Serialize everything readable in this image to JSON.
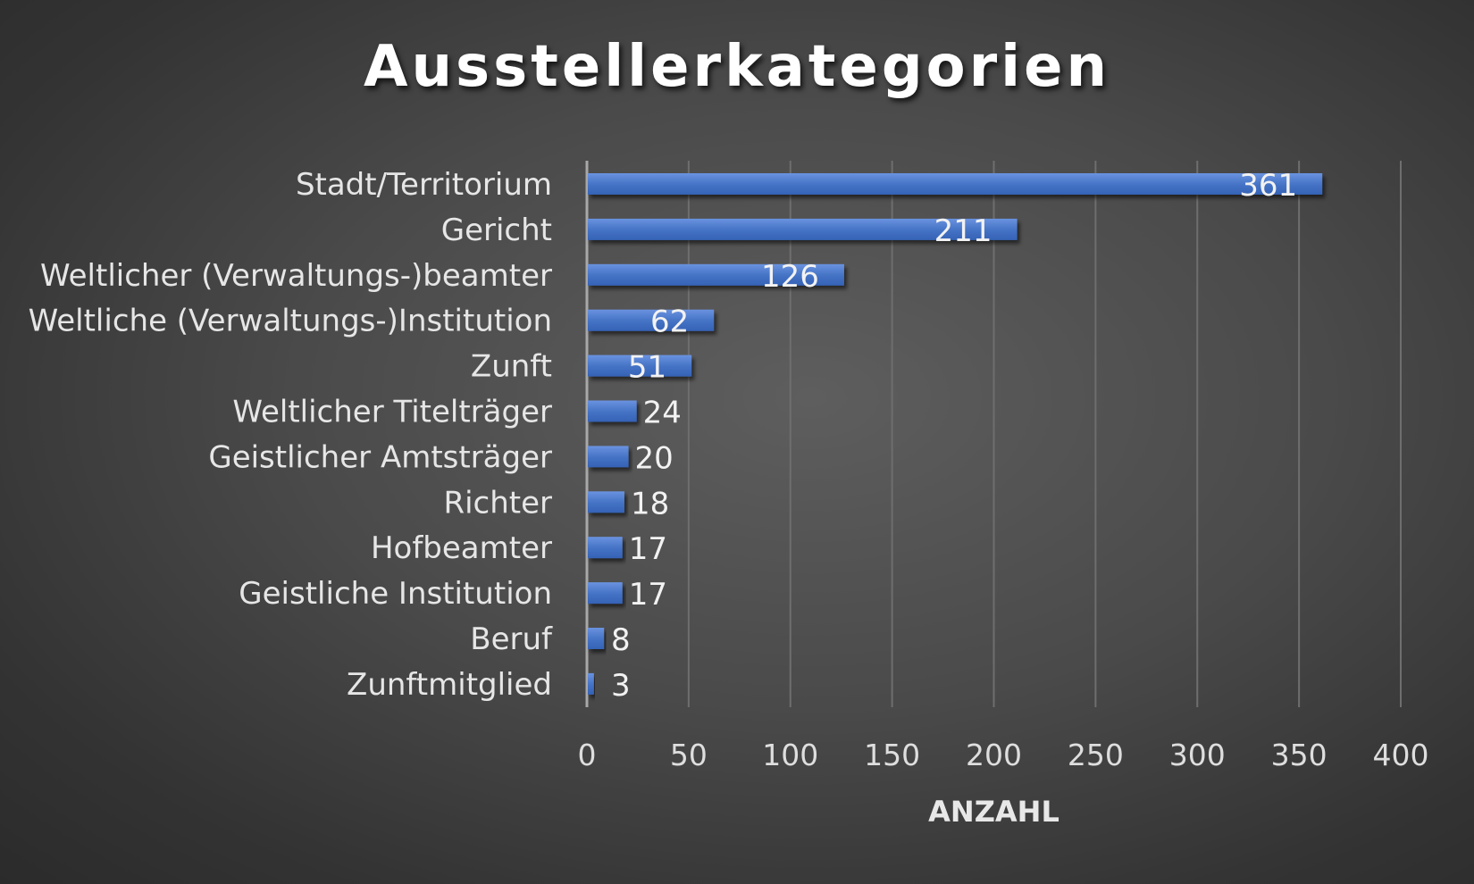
{
  "chart_data": {
    "type": "bar",
    "orientation": "horizontal",
    "title": "Ausstellerkategorien",
    "xlabel": "ANZAHL",
    "ylabel": "",
    "categories": [
      "Stadt/Territorium",
      "Gericht",
      "Weltlicher (Verwaltungs-)beamter",
      "Weltliche (Verwaltungs-)Institution",
      "Zunft",
      "Weltlicher Titelträger",
      "Geistlicher Amtsträger",
      "Richter",
      "Hofbeamter",
      "Geistliche Institution",
      "Beruf",
      "Zunftmitglied"
    ],
    "values": [
      361,
      211,
      126,
      62,
      51,
      24,
      20,
      18,
      17,
      17,
      8,
      3
    ],
    "xlim": [
      0,
      400
    ],
    "xticks": [
      0,
      50,
      100,
      150,
      200,
      250,
      300,
      350,
      400
    ],
    "grid": "vertical",
    "legend": "none",
    "bar_color": "#4472c4",
    "data_labels": true
  }
}
